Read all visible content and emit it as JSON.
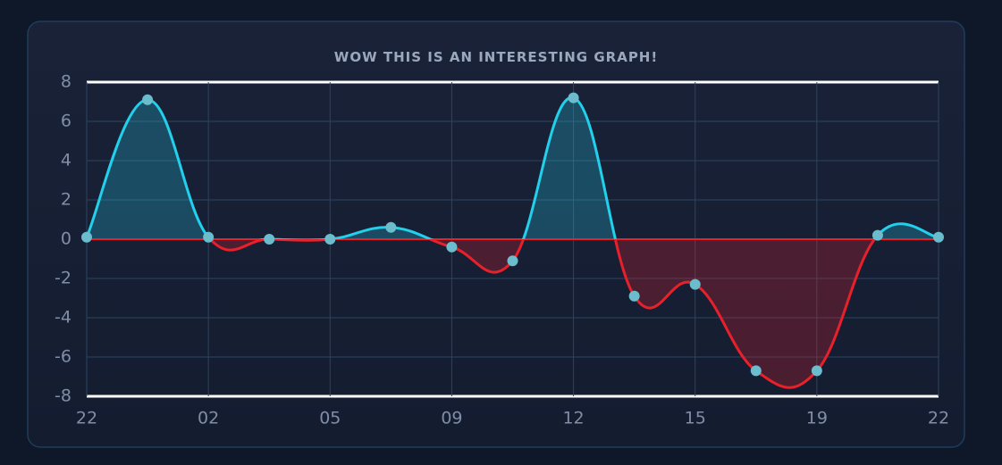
{
  "chart_data": {
    "type": "line",
    "title": "WOW THIS IS AN INTERESTING GRAPH!",
    "categories": [
      "22",
      null,
      "02",
      null,
      "05",
      null,
      "09",
      null,
      "12",
      null,
      "15",
      null,
      "19",
      null,
      "22"
    ],
    "values": [
      0.1,
      7.1,
      0.1,
      0,
      0,
      0.6,
      -0.4,
      -1.1,
      7.2,
      -2.9,
      -2.3,
      -6.7,
      -6.7,
      0.2,
      0.1
    ],
    "positive_color": "#22d0ec",
    "negative_color": "#e8202a",
    "marker_color": "#6bbccc",
    "ylim": [
      -8,
      8
    ],
    "yticks": [
      -8,
      -6,
      -4,
      -2,
      0,
      2,
      4,
      6,
      8
    ],
    "grid": true
  }
}
